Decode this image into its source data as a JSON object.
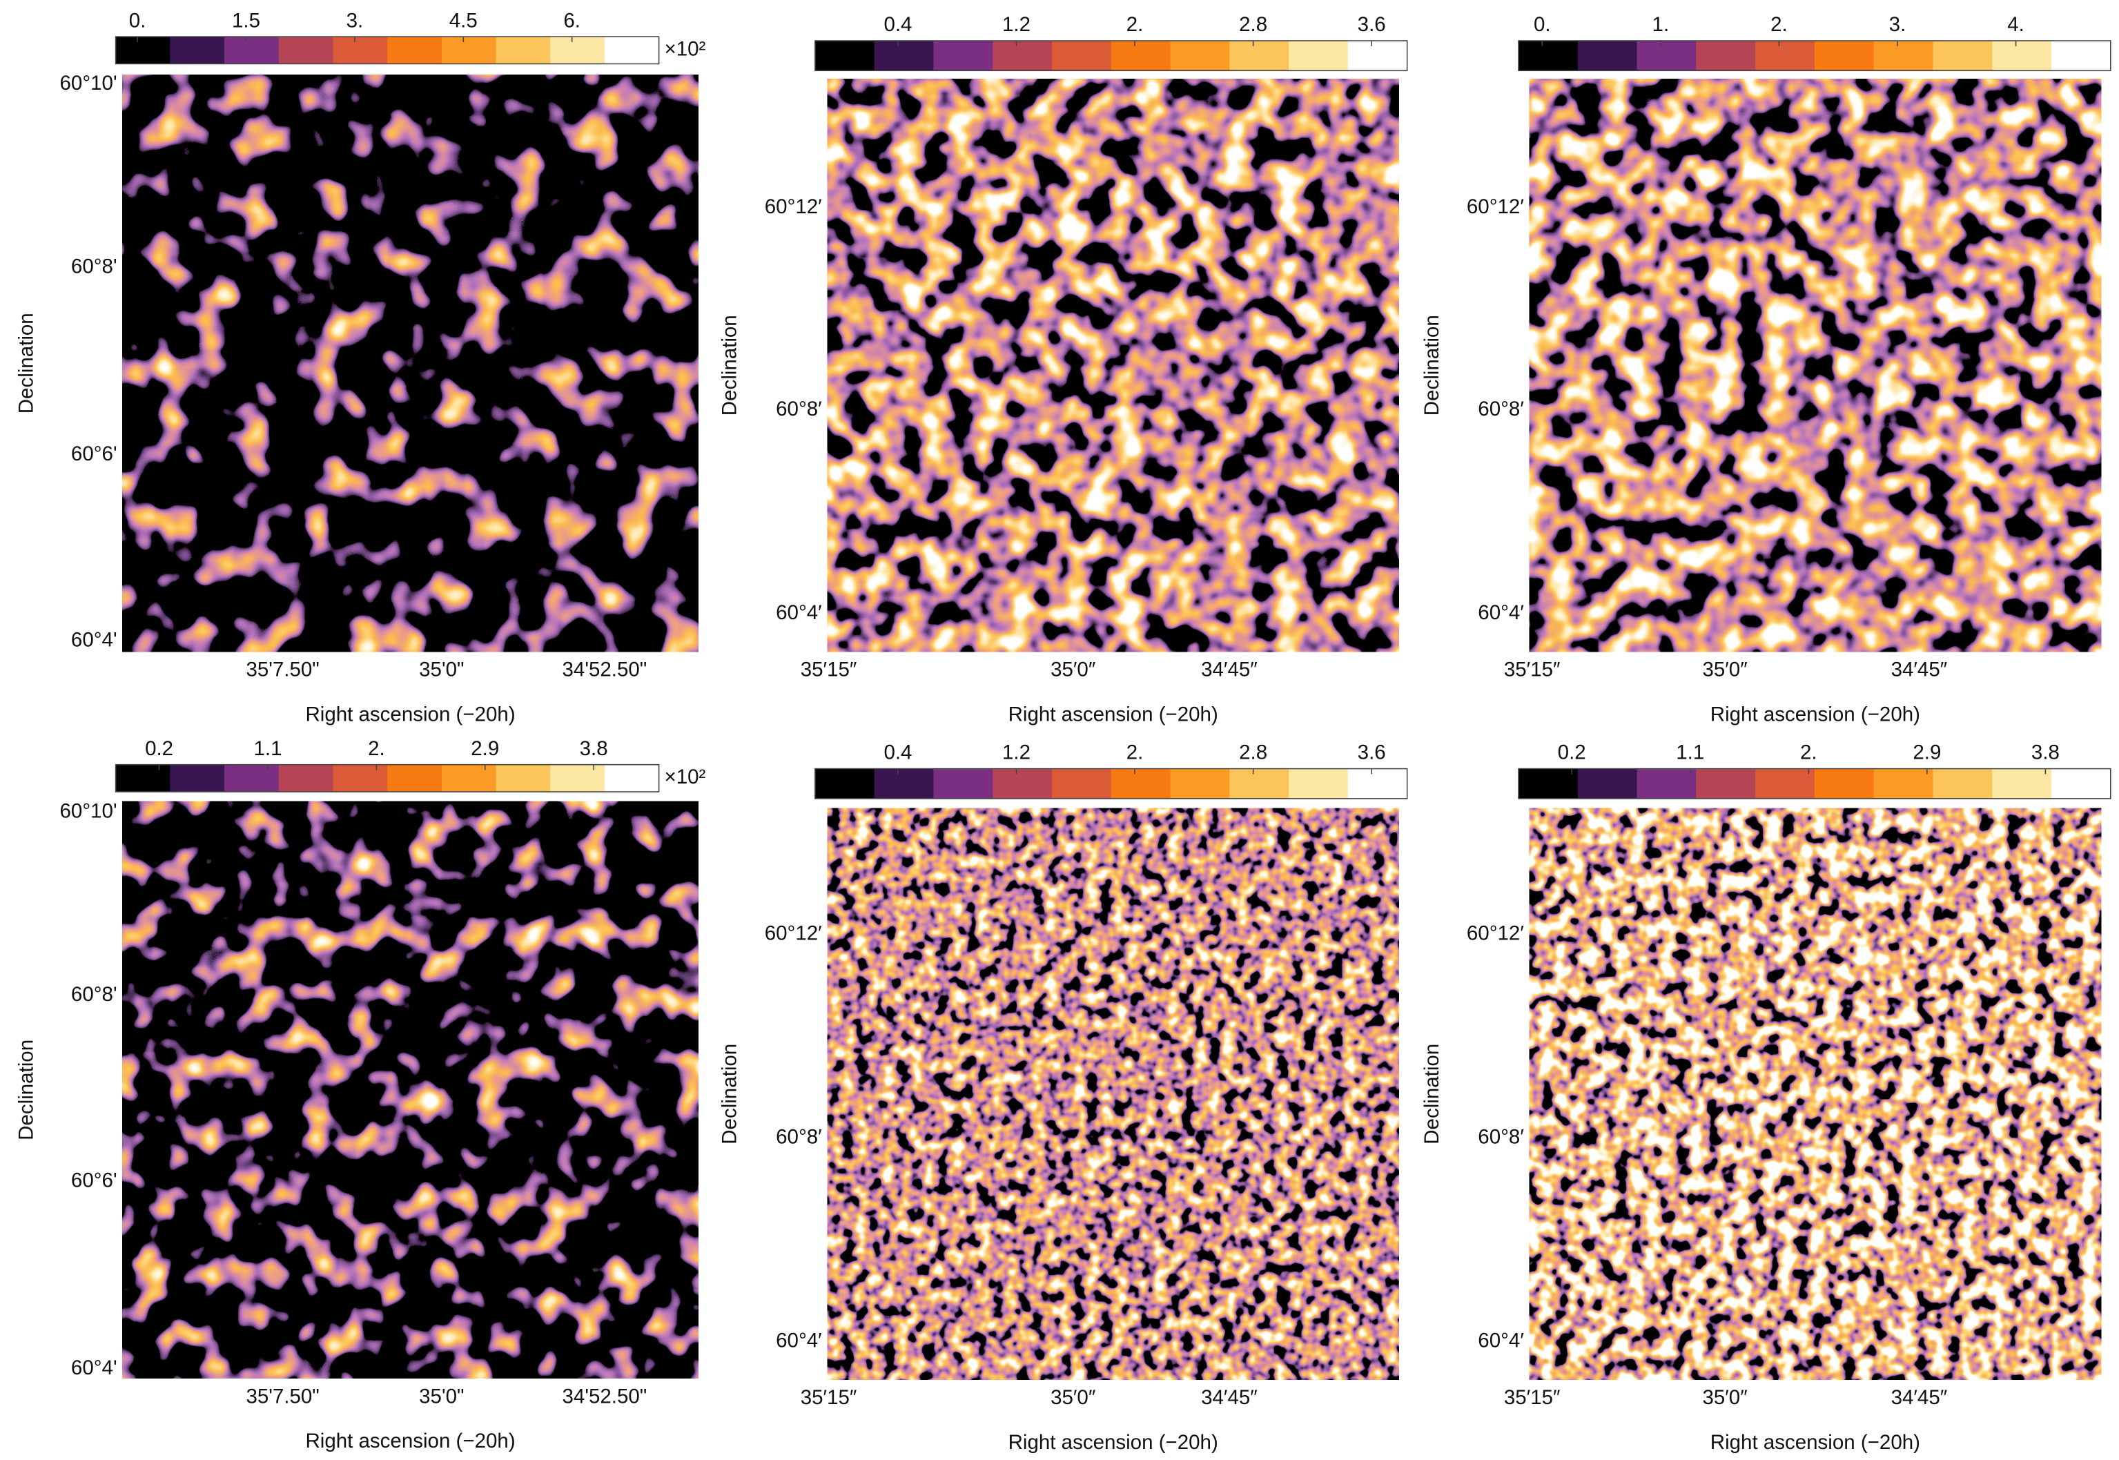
{
  "colormap": [
    "#000000",
    "#3a1650",
    "#7a2f82",
    "#b54455",
    "#db5a37",
    "#f87a12",
    "#fb9a24",
    "#fcc55b",
    "#fde7a5",
    "#ffffff"
  ],
  "panels": [
    {
      "colorbar": {
        "ticks": [
          "0.",
          "1.5",
          "3.",
          "4.5",
          "6."
        ],
        "multiplier": "×10²"
      },
      "y_ticks": [
        "60°10'",
        "60°8'",
        "60°6'",
        "60°4'"
      ],
      "x_ticks": [
        "35'7.50\"",
        "35'0\"",
        "34'52.50\""
      ],
      "x_label": "Right ascension (−20h)",
      "y_label": "Declination"
    },
    {
      "colorbar": {
        "ticks": [
          "0.4",
          "1.2",
          "2.",
          "2.8",
          "3.6"
        ]
      },
      "y_ticks": [
        "60°12′",
        "60°8′",
        "60°4′"
      ],
      "x_ticks": [
        "35′15″",
        "35′0″",
        "34′45″"
      ],
      "x_label": "Right ascension (−20h)",
      "y_label": "Declination"
    },
    {
      "colorbar": {
        "ticks": [
          "0.",
          "1.",
          "2.",
          "3.",
          "4."
        ]
      },
      "y_ticks": [
        "60°12′",
        "60°8′",
        "60°4′"
      ],
      "x_ticks": [
        "35′15″",
        "35′0″",
        "34′45″"
      ],
      "x_label": "Right ascension (−20h)",
      "y_label": "Declination"
    },
    {
      "colorbar": {
        "ticks": [
          "0.2",
          "1.1",
          "2.",
          "2.9",
          "3.8"
        ],
        "multiplier": "×10²"
      },
      "y_ticks": [
        "60°10'",
        "60°8'",
        "60°6'",
        "60°4'"
      ],
      "x_ticks": [
        "35'7.50\"",
        "35'0\"",
        "34'52.50\""
      ],
      "x_label": "Right ascension (−20h)",
      "y_label": "Declination"
    },
    {
      "colorbar": {
        "ticks": [
          "0.4",
          "1.2",
          "2.",
          "2.8",
          "3.6"
        ]
      },
      "y_ticks": [
        "60°12′",
        "60°8′",
        "60°4′"
      ],
      "x_ticks": [
        "35′15″",
        "35′0″",
        "34′45″"
      ],
      "x_label": "Right ascension (−20h)",
      "y_label": "Declination"
    },
    {
      "colorbar": {
        "ticks": [
          "0.2",
          "1.1",
          "2.",
          "2.9",
          "3.8"
        ]
      },
      "y_ticks": [
        "60°12′",
        "60°8′",
        "60°4′"
      ],
      "x_ticks": [
        "35′15″",
        "35′0″",
        "34′45″"
      ],
      "x_label": "Right ascension (−20h)",
      "y_label": "Declination"
    }
  ]
}
